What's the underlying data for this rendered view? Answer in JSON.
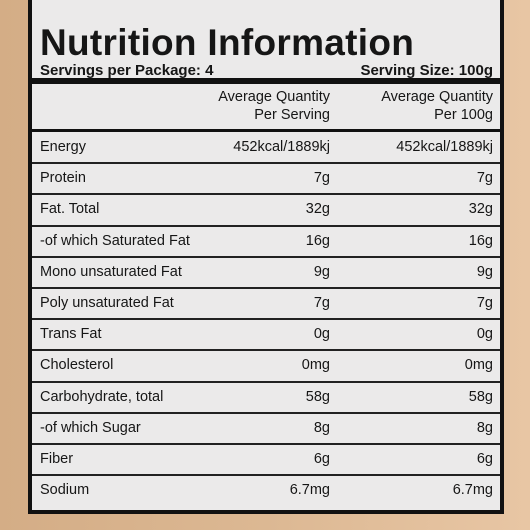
{
  "header": {
    "title": "Nutrition Information",
    "servings": "Servings per Package: 4",
    "serving_size": "Serving Size: 100g"
  },
  "table": {
    "columns": [
      {
        "line1": "Average Quantity",
        "line2": "Per Serving"
      },
      {
        "line1": "Average Quantity",
        "line2": "Per 100g"
      }
    ],
    "rows": [
      [
        "Energy",
        "452kcal/1889kj",
        "452kcal/1889kj"
      ],
      [
        "Protein",
        "7g",
        "7g"
      ],
      [
        "Fat. Total",
        "32g",
        "32g"
      ],
      [
        "-of which Saturated Fat",
        "16g",
        "16g"
      ],
      [
        "Mono unsaturated Fat",
        "9g",
        "9g"
      ],
      [
        "Poly unsaturated Fat",
        "7g",
        "7g"
      ],
      [
        "Trans Fat",
        "0g",
        "0g"
      ],
      [
        "Cholesterol",
        "0mg",
        "0mg"
      ],
      [
        "Carbohydrate, total",
        "58g",
        "58g"
      ],
      [
        "-of which Sugar",
        "8g",
        "8g"
      ],
      [
        "Fiber",
        "6g",
        "6g"
      ],
      [
        "Sodium",
        "6.7mg",
        "6.7mg"
      ]
    ]
  }
}
